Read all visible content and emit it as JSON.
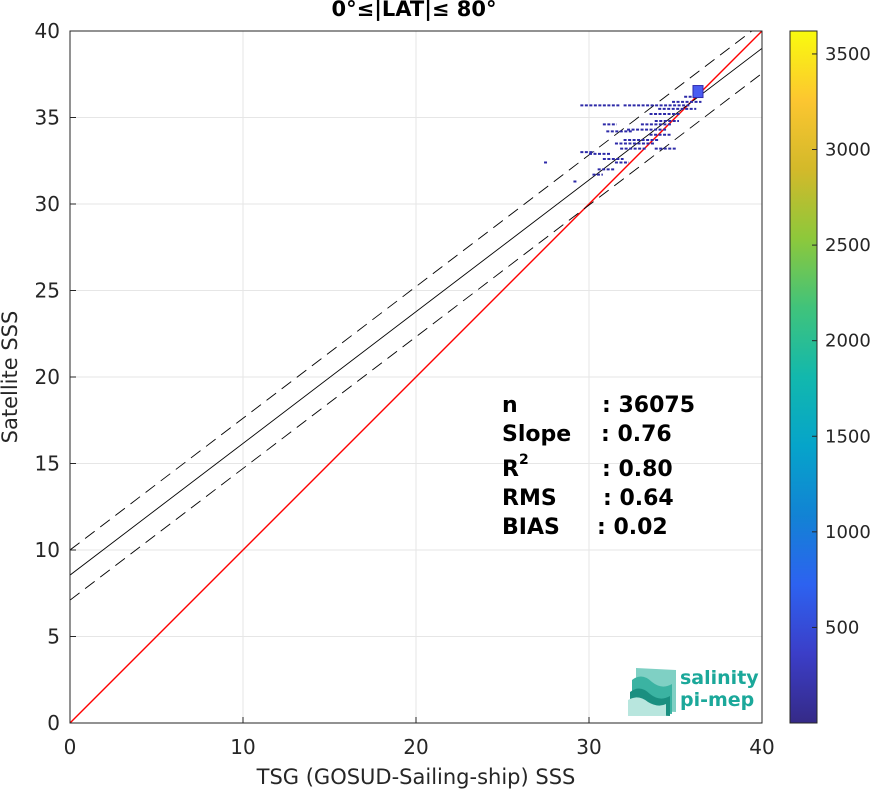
{
  "chart_data": {
    "type": "scatter",
    "title": "0°≤|LAT|≤ 80°",
    "xlabel": "TSG (GOSUD-Sailing-ship) SSS",
    "ylabel": "Satellite SSS",
    "xlim": [
      0,
      40
    ],
    "ylim": [
      0,
      40
    ],
    "xticks": [
      0,
      10,
      20,
      30,
      40
    ],
    "yticks": [
      0,
      5,
      10,
      15,
      20,
      25,
      30,
      35,
      40
    ],
    "grid": true,
    "colorbar": {
      "range": [
        0,
        3620
      ],
      "ticks": [
        500,
        1000,
        1500,
        2000,
        2500,
        3000,
        3500
      ],
      "colormap": "parula"
    },
    "lines": [
      {
        "role": "identity",
        "color": "#ff0000",
        "style": "solid",
        "points": [
          [
            0,
            0
          ],
          [
            40,
            40
          ]
        ]
      },
      {
        "role": "regression",
        "color": "#000000",
        "style": "solid",
        "points": [
          [
            0,
            8.55
          ],
          [
            40,
            39.0
          ]
        ]
      },
      {
        "role": "upper-bound",
        "color": "#000000",
        "style": "dashed",
        "points": [
          [
            0,
            10.0
          ],
          [
            40,
            40.45
          ]
        ]
      },
      {
        "role": "lower-bound",
        "color": "#000000",
        "style": "dashed",
        "points": [
          [
            0,
            7.1
          ],
          [
            40,
            37.55
          ]
        ]
      }
    ],
    "density_segments": [
      {
        "x0": 29.5,
        "x1": 31.8,
        "y": 35.7
      },
      {
        "x0": 32.0,
        "x1": 35.8,
        "y": 35.7
      },
      {
        "x0": 34.0,
        "x1": 36.2,
        "y": 35.5
      },
      {
        "x0": 34.8,
        "x1": 36.5,
        "y": 35.9
      },
      {
        "x0": 35.5,
        "x1": 36.5,
        "y": 36.2
      },
      {
        "x0": 33.5,
        "x1": 35.3,
        "y": 35.2
      },
      {
        "x0": 33.8,
        "x1": 35.2,
        "y": 34.8
      },
      {
        "x0": 33.0,
        "x1": 34.8,
        "y": 34.6
      },
      {
        "x0": 30.8,
        "x1": 31.6,
        "y": 34.6
      },
      {
        "x0": 32.2,
        "x1": 34.5,
        "y": 34.3
      },
      {
        "x0": 31.0,
        "x1": 32.5,
        "y": 34.2
      },
      {
        "x0": 33.5,
        "x1": 34.8,
        "y": 34.0
      },
      {
        "x0": 32.0,
        "x1": 34.0,
        "y": 33.7
      },
      {
        "x0": 31.5,
        "x1": 33.8,
        "y": 33.5
      },
      {
        "x0": 33.8,
        "x1": 35.1,
        "y": 33.2
      },
      {
        "x0": 31.8,
        "x1": 33.3,
        "y": 33.2
      },
      {
        "x0": 29.5,
        "x1": 30.3,
        "y": 33.0
      },
      {
        "x0": 30.0,
        "x1": 31.3,
        "y": 32.9
      },
      {
        "x0": 30.8,
        "x1": 32.0,
        "y": 32.6
      },
      {
        "x0": 31.5,
        "x1": 32.3,
        "y": 32.4
      },
      {
        "x0": 30.5,
        "x1": 31.5,
        "y": 32.0
      },
      {
        "x0": 30.2,
        "x1": 30.8,
        "y": 31.7
      },
      {
        "x0": 27.4,
        "x1": 27.6,
        "y": 32.4
      },
      {
        "x0": 29.1,
        "x1": 29.3,
        "y": 31.3
      }
    ],
    "density_cluster": {
      "x": 36.3,
      "y": 36.5,
      "count": 3600
    },
    "stats": [
      {
        "label": "n",
        "value": ": 36075"
      },
      {
        "label": "Slope",
        "value": ": 0.76"
      },
      {
        "label": "R",
        "sup": "2",
        "value": ": 0.80"
      },
      {
        "label": "RMS",
        "value": ": 0.64"
      },
      {
        "label": "BIAS",
        "value": ": 0.02"
      }
    ]
  },
  "logo": {
    "line1": "salinity",
    "line2": "pi-mep",
    "color": "#1ba89a"
  }
}
